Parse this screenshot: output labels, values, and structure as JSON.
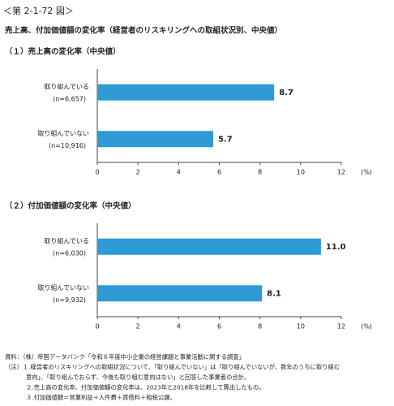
{
  "figure_label": "＜第 2-1-72 図＞",
  "title": "売上高、付加価値額の変化率（経営者のリスキリングへの取組状況別、中央値）",
  "chart_data": [
    {
      "type": "bar",
      "orientation": "horizontal",
      "title": "（１）売上高の変化率（中央値）",
      "categories": [
        "取り組んでいる",
        "取り組んでいない"
      ],
      "sample_sizes": [
        "(n=6,657)",
        "(n=10,916)"
      ],
      "values": [
        8.7,
        5.7
      ],
      "color": "#2e9bd6",
      "xlim": [
        0,
        12
      ],
      "xticks": [
        0,
        2,
        4,
        6,
        8,
        10,
        12
      ],
      "x_unit": "(%)"
    },
    {
      "type": "bar",
      "orientation": "horizontal",
      "title": "（２）付加価値額の変化率（中央値）",
      "categories": [
        "取り組んでいる",
        "取り組んでいない"
      ],
      "sample_sizes": [
        "(n=6,030)",
        "(n=9,932)"
      ],
      "values": [
        11.0,
        8.1
      ],
      "value_labels": [
        "11.0",
        "8.1"
      ],
      "color": "#2e9bd6",
      "xlim": [
        0,
        12
      ],
      "xticks": [
        0,
        2,
        4,
        6,
        8,
        10,
        12
      ],
      "x_unit": "(%)"
    }
  ],
  "notes": [
    "資料：（株）帝国データバンク「令和６年度中小企業の経営課題と事業活動に関する調査」",
    "（注）１.経営者のリスキリングへの取組状況について、「取り組んでいない」は「取り組んでいないが、数年のうちに取り組む",
    "意向」、「取り組んでおらず、今後も取り組む意向はない」と回答した事業者の合計。",
    "２.売上高の変化率、付加価値額の変化率は、2023年と2018年を比較して算出したもの。",
    "３.付加価値額＝営業利益＋人件費＋賃借料＋租税公課。"
  ]
}
